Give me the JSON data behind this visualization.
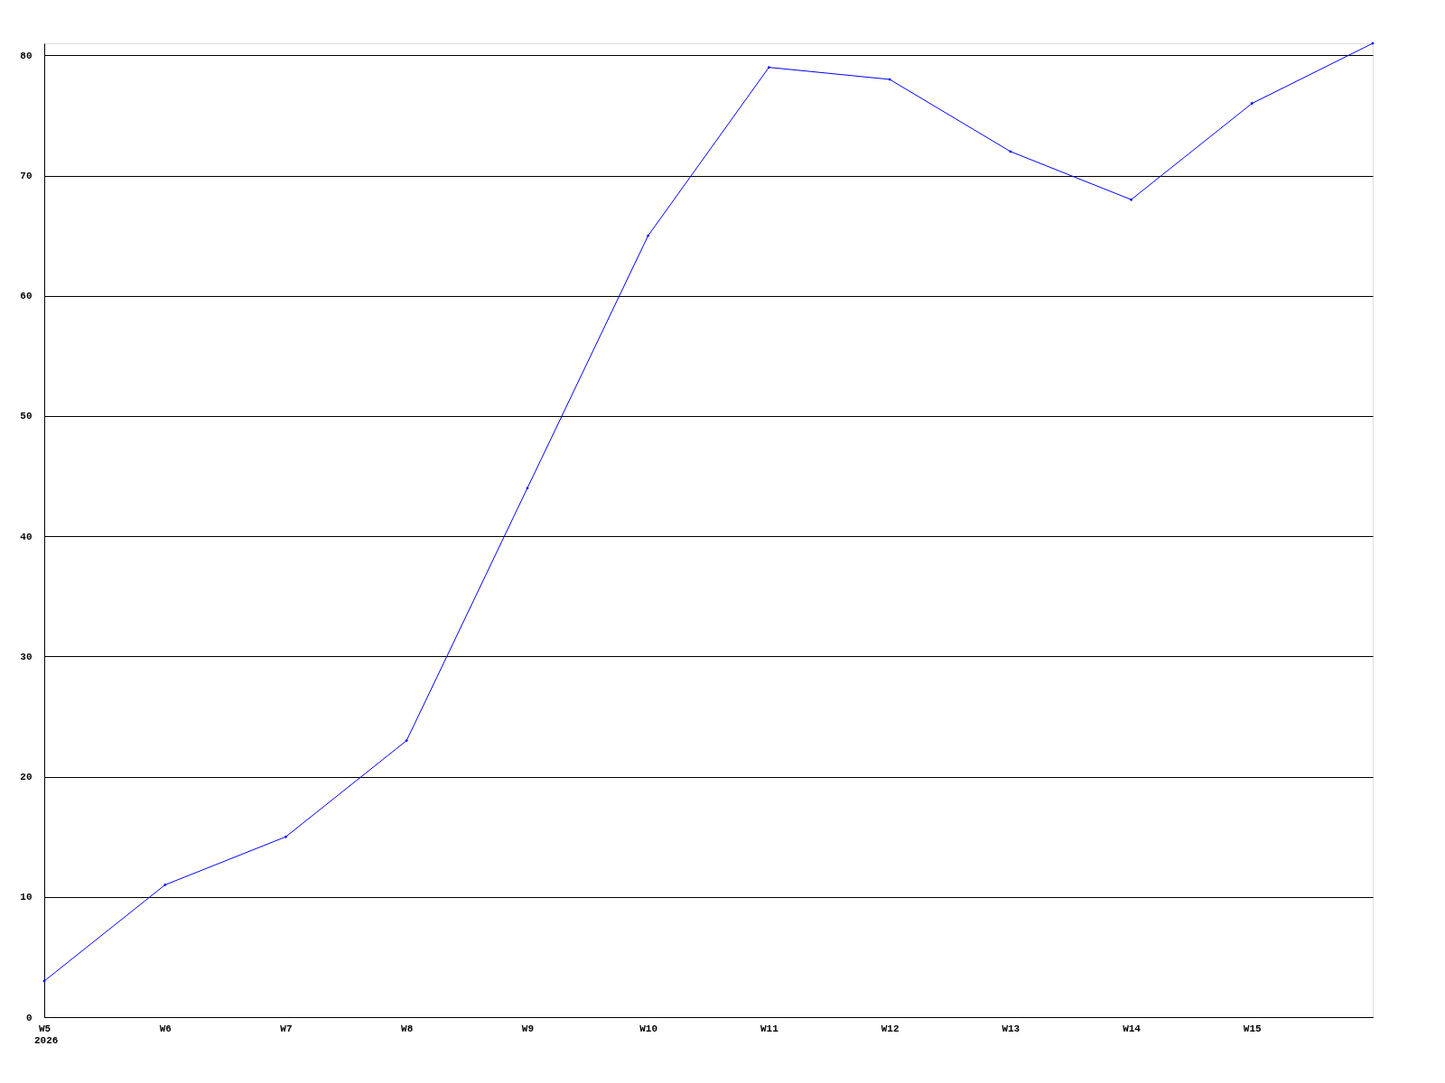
{
  "chart_data": {
    "type": "line",
    "categories": [
      "W5",
      "W6",
      "W7",
      "W8",
      "W9",
      "W10",
      "W11",
      "W12",
      "W13",
      "W14",
      "W15",
      null
    ],
    "series": [
      {
        "color": "#0000ff",
        "values": [
          3,
          11,
          15,
          23,
          44,
          65,
          79,
          78,
          72,
          68,
          76,
          81
        ]
      }
    ],
    "ylim": [
      0,
      81
    ],
    "yticks": [
      0,
      10,
      20,
      30,
      40,
      50,
      60,
      70,
      80
    ],
    "grid": "y",
    "marker": "diamond",
    "line_style": "solid",
    "annotations": [
      "2026"
    ]
  }
}
